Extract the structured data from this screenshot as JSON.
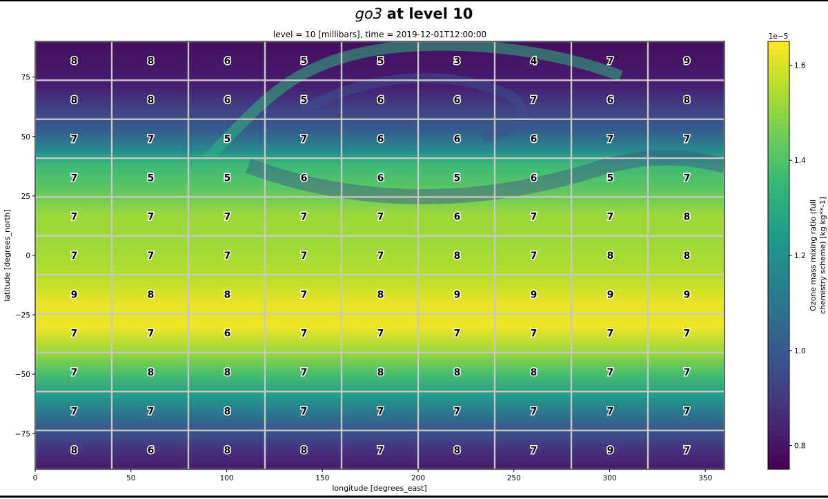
{
  "title": {
    "variable": "go3",
    "rest": "at level 10"
  },
  "subtitle": "level = 10 [millibars], time = 2019-12-01T12:00:00",
  "chart_data": {
    "type": "heatmap",
    "xlabel": "longitude [degrees_east]",
    "ylabel": "latitude [degrees_north]",
    "xlim": [
      0,
      360
    ],
    "ylim": [
      -90,
      90
    ],
    "xticks": [
      0,
      50,
      100,
      150,
      200,
      250,
      300,
      350
    ],
    "yticks": [
      75,
      50,
      25,
      0,
      -25,
      -50,
      -75
    ],
    "colormap": "viridis",
    "colorbar": {
      "label": "Ozone mass mixing ratio (full chemistry scheme) [kg kg**-1]",
      "label_lines": [
        "Ozone mass mixing ratio (full",
        "chemistry scheme) [kg kg**-1]"
      ],
      "multiplier": "1e−5",
      "min": 0.75,
      "max": 1.65,
      "ticks": [
        "0.8",
        "1.0",
        "1.2",
        "1.4",
        "1.6"
      ]
    },
    "grid": {
      "columns": 9,
      "rows": 11,
      "cell_width_deg": 40,
      "cell_height_deg": 16.36,
      "values": [
        [
          8,
          8,
          6,
          5,
          5,
          3,
          4,
          7,
          9
        ],
        [
          8,
          8,
          6,
          5,
          6,
          6,
          7,
          6,
          8
        ],
        [
          7,
          7,
          5,
          7,
          6,
          6,
          6,
          7,
          7
        ],
        [
          7,
          5,
          5,
          6,
          6,
          5,
          6,
          5,
          7
        ],
        [
          7,
          7,
          7,
          7,
          7,
          6,
          7,
          7,
          8
        ],
        [
          7,
          7,
          7,
          7,
          7,
          8,
          7,
          8,
          8
        ],
        [
          9,
          8,
          8,
          7,
          8,
          9,
          9,
          9,
          9
        ],
        [
          7,
          7,
          6,
          7,
          7,
          7,
          7,
          7,
          7
        ],
        [
          7,
          8,
          8,
          7,
          8,
          8,
          8,
          7,
          7
        ],
        [
          7,
          7,
          8,
          7,
          7,
          7,
          7,
          7,
          7
        ],
        [
          8,
          6,
          8,
          8,
          7,
          8,
          7,
          9,
          7
        ]
      ]
    },
    "field_bands": [
      {
        "lat": 90,
        "v": 0.78
      },
      {
        "lat": 82,
        "v": 0.8
      },
      {
        "lat": 72,
        "v": 0.82
      },
      {
        "lat": 62,
        "v": 0.92
      },
      {
        "lat": 52,
        "v": 1.02
      },
      {
        "lat": 44,
        "v": 1.18
      },
      {
        "lat": 38,
        "v": 1.36
      },
      {
        "lat": 28,
        "v": 1.42
      },
      {
        "lat": 16,
        "v": 1.52
      },
      {
        "lat": 4,
        "v": 1.52
      },
      {
        "lat": -8,
        "v": 1.55
      },
      {
        "lat": -20,
        "v": 1.62
      },
      {
        "lat": -30,
        "v": 1.63
      },
      {
        "lat": -40,
        "v": 1.52
      },
      {
        "lat": -50,
        "v": 1.38
      },
      {
        "lat": -60,
        "v": 1.22
      },
      {
        "lat": -68,
        "v": 1.08
      },
      {
        "lat": -76,
        "v": 0.95
      },
      {
        "lat": -84,
        "v": 0.86
      },
      {
        "lat": -90,
        "v": 0.82
      }
    ]
  }
}
